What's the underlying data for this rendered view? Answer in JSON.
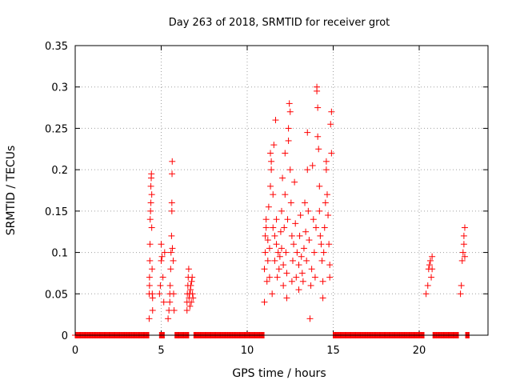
{
  "chart_data": {
    "type": "scatter",
    "title": "Day 263 of 2018, SRMTID for receiver grot",
    "xlabel": "GPS time / hours",
    "ylabel": "SRMTID / TECUs",
    "xlim": [
      0,
      24
    ],
    "ylim": [
      0,
      0.35
    ],
    "x_ticks": [
      0,
      5,
      10,
      15,
      20
    ],
    "x_tick_labels": [
      "0",
      "5",
      "10",
      "15",
      "20"
    ],
    "y_ticks": [
      0,
      0.05,
      0.1,
      0.15,
      0.2,
      0.25,
      0.3,
      0.35
    ],
    "y_tick_labels": [
      "0",
      "0.05",
      "0.1",
      "0.15",
      "0.2",
      "0.25",
      "0.3",
      "0.35"
    ],
    "grid": true,
    "marker": "+",
    "color": "#ff0000",
    "zero_baseline_ranges": [
      [
        0.0,
        4.3
      ],
      [
        4.9,
        5.2
      ],
      [
        5.8,
        6.6
      ],
      [
        6.9,
        11.0
      ],
      [
        15.0,
        20.3
      ],
      [
        20.8,
        22.3
      ],
      [
        22.7,
        22.9
      ]
    ],
    "series": [
      {
        "points": [
          [
            4.3,
            0.02
          ],
          [
            4.3,
            0.05
          ],
          [
            4.32,
            0.06
          ],
          [
            4.32,
            0.07
          ],
          [
            4.34,
            0.09
          ],
          [
            4.35,
            0.11
          ],
          [
            4.36,
            0.14
          ],
          [
            4.38,
            0.15
          ],
          [
            4.4,
            0.16
          ],
          [
            4.4,
            0.18
          ],
          [
            4.42,
            0.19
          ],
          [
            4.43,
            0.195
          ],
          [
            4.45,
            0.17
          ],
          [
            4.45,
            0.13
          ],
          [
            4.47,
            0.08
          ],
          [
            4.48,
            0.05
          ],
          [
            4.5,
            0.03
          ],
          [
            4.5,
            0.045
          ],
          [
            4.9,
            0.05
          ],
          [
            4.95,
            0.06
          ],
          [
            5.0,
            0.09
          ],
          [
            5.0,
            0.11
          ],
          [
            5.05,
            0.095
          ],
          [
            5.1,
            0.07
          ],
          [
            5.15,
            0.04
          ],
          [
            5.2,
            0.1
          ],
          [
            5.4,
            0.02
          ],
          [
            5.45,
            0.03
          ],
          [
            5.5,
            0.04
          ],
          [
            5.5,
            0.05
          ],
          [
            5.52,
            0.06
          ],
          [
            5.55,
            0.08
          ],
          [
            5.57,
            0.1
          ],
          [
            5.6,
            0.12
          ],
          [
            5.62,
            0.15
          ],
          [
            5.62,
            0.16
          ],
          [
            5.63,
            0.195
          ],
          [
            5.64,
            0.21
          ],
          [
            5.65,
            0.105
          ],
          [
            5.7,
            0.09
          ],
          [
            5.72,
            0.05
          ],
          [
            5.75,
            0.03
          ],
          [
            6.5,
            0.03
          ],
          [
            6.5,
            0.04
          ],
          [
            6.52,
            0.05
          ],
          [
            6.55,
            0.06
          ],
          [
            6.57,
            0.07
          ],
          [
            6.6,
            0.08
          ],
          [
            6.62,
            0.045
          ],
          [
            6.65,
            0.05
          ],
          [
            6.67,
            0.035
          ],
          [
            6.7,
            0.055
          ],
          [
            6.72,
            0.06
          ],
          [
            6.75,
            0.04
          ],
          [
            6.77,
            0.065
          ],
          [
            6.8,
            0.07
          ],
          [
            6.82,
            0.05
          ],
          [
            6.85,
            0.045
          ],
          [
            11.0,
            0.04
          ],
          [
            11.0,
            0.08
          ],
          [
            11.05,
            0.1
          ],
          [
            11.05,
            0.12
          ],
          [
            11.1,
            0.13
          ],
          [
            11.1,
            0.14
          ],
          [
            11.15,
            0.065
          ],
          [
            11.2,
            0.09
          ],
          [
            11.2,
            0.115
          ],
          [
            11.25,
            0.155
          ],
          [
            11.3,
            0.07
          ],
          [
            11.3,
            0.105
          ],
          [
            11.35,
            0.18
          ],
          [
            11.35,
            0.22
          ],
          [
            11.4,
            0.21
          ],
          [
            11.4,
            0.2
          ],
          [
            11.45,
            0.05
          ],
          [
            11.5,
            0.13
          ],
          [
            11.5,
            0.17
          ],
          [
            11.55,
            0.23
          ],
          [
            11.6,
            0.12
          ],
          [
            11.6,
            0.09
          ],
          [
            11.65,
            0.26
          ],
          [
            11.7,
            0.14
          ],
          [
            11.7,
            0.11
          ],
          [
            11.75,
            0.07
          ],
          [
            11.8,
            0.1
          ],
          [
            11.85,
            0.08
          ],
          [
            11.9,
            0.095
          ],
          [
            11.95,
            0.125
          ],
          [
            12.0,
            0.15
          ],
          [
            12.0,
            0.105
          ],
          [
            12.05,
            0.19
          ],
          [
            12.1,
            0.085
          ],
          [
            12.1,
            0.06
          ],
          [
            12.15,
            0.13
          ],
          [
            12.2,
            0.22
          ],
          [
            12.2,
            0.17
          ],
          [
            12.25,
            0.1
          ],
          [
            12.3,
            0.075
          ],
          [
            12.3,
            0.045
          ],
          [
            12.35,
            0.14
          ],
          [
            12.4,
            0.235
          ],
          [
            12.4,
            0.25
          ],
          [
            12.45,
            0.28
          ],
          [
            12.5,
            0.27
          ],
          [
            12.5,
            0.2
          ],
          [
            12.55,
            0.16
          ],
          [
            12.6,
            0.12
          ],
          [
            12.6,
            0.065
          ],
          [
            12.65,
            0.09
          ],
          [
            12.7,
            0.11
          ],
          [
            12.75,
            0.185
          ],
          [
            12.8,
            0.135
          ],
          [
            12.85,
            0.07
          ],
          [
            12.9,
            0.1
          ],
          [
            13.0,
            0.055
          ],
          [
            13.0,
            0.085
          ],
          [
            13.05,
            0.12
          ],
          [
            13.1,
            0.145
          ],
          [
            13.15,
            0.095
          ],
          [
            13.2,
            0.075
          ],
          [
            13.25,
            0.065
          ],
          [
            13.3,
            0.105
          ],
          [
            13.35,
            0.16
          ],
          [
            13.4,
            0.125
          ],
          [
            13.45,
            0.09
          ],
          [
            13.5,
            0.2
          ],
          [
            13.5,
            0.245
          ],
          [
            13.55,
            0.15
          ],
          [
            13.6,
            0.115
          ],
          [
            13.65,
            0.02
          ],
          [
            13.7,
            0.06
          ],
          [
            13.75,
            0.08
          ],
          [
            13.8,
            0.205
          ],
          [
            13.85,
            0.14
          ],
          [
            13.9,
            0.1
          ],
          [
            13.95,
            0.07
          ],
          [
            14.0,
            0.13
          ],
          [
            14.05,
            0.3
          ],
          [
            14.05,
            0.295
          ],
          [
            14.1,
            0.275
          ],
          [
            14.1,
            0.24
          ],
          [
            14.15,
            0.225
          ],
          [
            14.2,
            0.18
          ],
          [
            14.2,
            0.15
          ],
          [
            14.25,
            0.12
          ],
          [
            14.3,
            0.11
          ],
          [
            14.35,
            0.09
          ],
          [
            14.4,
            0.045
          ],
          [
            14.4,
            0.065
          ],
          [
            14.45,
            0.1
          ],
          [
            14.5,
            0.13
          ],
          [
            14.55,
            0.16
          ],
          [
            14.6,
            0.2
          ],
          [
            14.6,
            0.21
          ],
          [
            14.65,
            0.17
          ],
          [
            14.7,
            0.145
          ],
          [
            14.75,
            0.11
          ],
          [
            14.8,
            0.085
          ],
          [
            14.8,
            0.07
          ],
          [
            14.85,
            0.255
          ],
          [
            14.9,
            0.27
          ],
          [
            14.9,
            0.22
          ],
          [
            20.4,
            0.05
          ],
          [
            20.5,
            0.06
          ],
          [
            20.55,
            0.08
          ],
          [
            20.6,
            0.085
          ],
          [
            20.65,
            0.09
          ],
          [
            20.7,
            0.07
          ],
          [
            20.75,
            0.08
          ],
          [
            20.75,
            0.095
          ],
          [
            22.4,
            0.05
          ],
          [
            22.45,
            0.06
          ],
          [
            22.5,
            0.09
          ],
          [
            22.55,
            0.1
          ],
          [
            22.6,
            0.11
          ],
          [
            22.6,
            0.12
          ],
          [
            22.65,
            0.13
          ],
          [
            22.65,
            0.095
          ]
        ]
      }
    ]
  }
}
